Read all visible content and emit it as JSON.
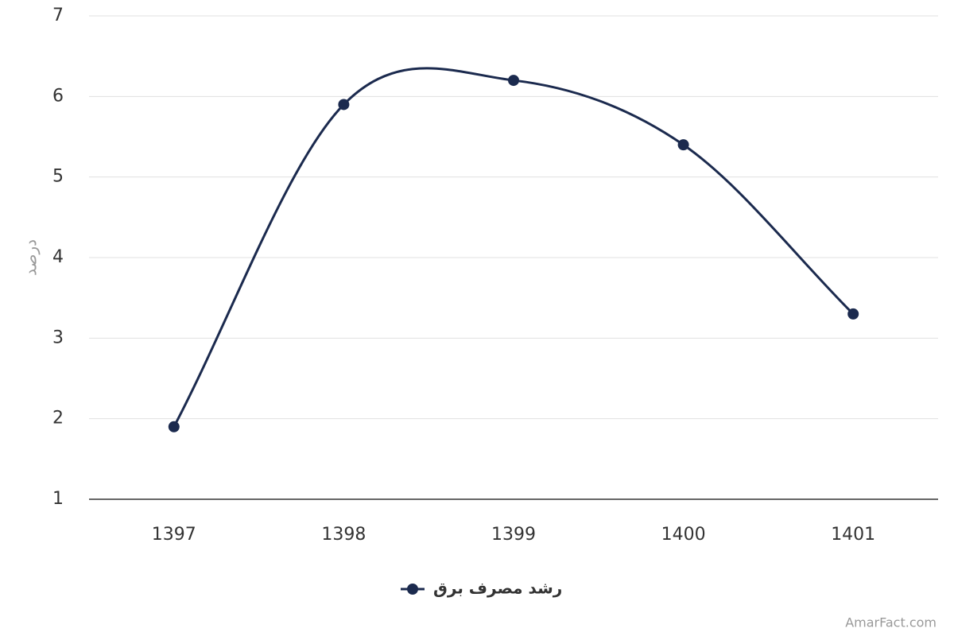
{
  "chart_data": {
    "type": "line",
    "y_label": "درصد",
    "categories": [
      "1397",
      "1398",
      "1399",
      "1400",
      "1401"
    ],
    "series": [
      {
        "name": "رشد مصرف برق",
        "color": "#1b2a4e",
        "values": [
          1.9,
          5.9,
          6.2,
          5.4,
          3.3
        ]
      }
    ],
    "ylim": [
      1,
      7
    ],
    "yticks": [
      1,
      2,
      3,
      4,
      5,
      6,
      7
    ],
    "grid": true,
    "smooth": true,
    "legend": "bottom",
    "credit": "AmarFact.com"
  }
}
